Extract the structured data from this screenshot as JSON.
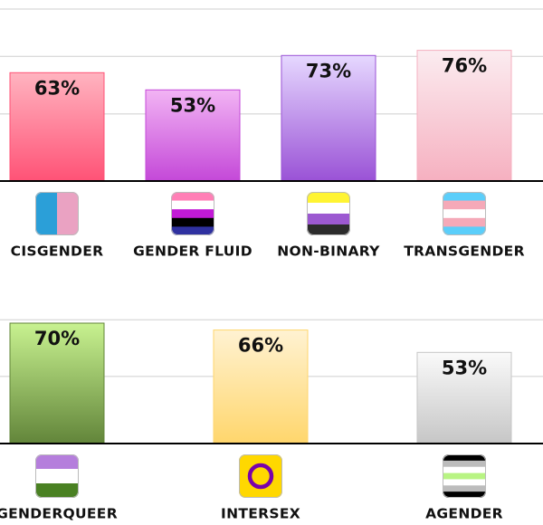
{
  "chart_data": [
    {
      "type": "bar",
      "categories": [
        "CISGENDER",
        "GENDER FLUID",
        "NON-BINARY",
        "TRANSGENDER"
      ],
      "values": [
        63,
        53,
        73,
        76
      ],
      "value_labels": [
        "63%",
        "53%",
        "73%",
        "76%"
      ],
      "colors": [
        [
          "#ffb4c0",
          "#ff5276"
        ],
        [
          "#f2b4f4",
          "#c448d8"
        ],
        [
          "#e6d8ff",
          "#9a52d6"
        ],
        [
          "#fbecf0",
          "#f6b0c0"
        ]
      ],
      "ylim": [
        0,
        100
      ],
      "gridlines": [
        39,
        72.5,
        100
      ]
    },
    {
      "type": "bar",
      "categories": [
        "GENDERQUEER",
        "INTERSEX",
        "AGENDER"
      ],
      "values": [
        70,
        66,
        53
      ],
      "value_labels": [
        "70%",
        "66%",
        "53%"
      ],
      "colors": [
        [
          "#c8f290",
          "#62853a"
        ],
        [
          "#fff2d2",
          "#ffd66c"
        ],
        [
          "#fafafa",
          "#c6c6c6"
        ]
      ],
      "ylim": [
        0,
        100
      ],
      "gridlines": [
        39,
        72
      ]
    }
  ]
}
